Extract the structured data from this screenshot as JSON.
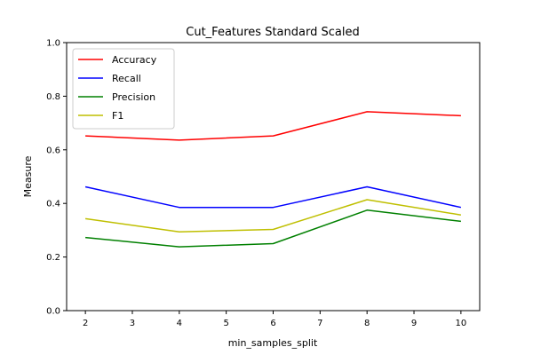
{
  "chart_data": {
    "type": "line",
    "title": "Cut_Features Standard Scaled",
    "xlabel": "min_samples_split",
    "ylabel": "Measure",
    "x": [
      2,
      4,
      6,
      8,
      10
    ],
    "xlim": [
      1.6,
      10.4
    ],
    "ylim": [
      0.0,
      1.0
    ],
    "xticks": [
      "2",
      "3",
      "4",
      "5",
      "6",
      "7",
      "8",
      "9",
      "10"
    ],
    "yticks": [
      "0.0",
      "0.2",
      "0.4",
      "0.6",
      "0.8",
      "1.0"
    ],
    "grid": false,
    "legend": "top-left",
    "series": [
      {
        "name": "Accuracy",
        "color": "#ff0000",
        "values": [
          0.652,
          0.636,
          0.652,
          0.742,
          0.727
        ]
      },
      {
        "name": "Recall",
        "color": "#0000ff",
        "values": [
          0.462,
          0.385,
          0.385,
          0.462,
          0.385
        ]
      },
      {
        "name": "Precision",
        "color": "#008000",
        "values": [
          0.273,
          0.238,
          0.25,
          0.375,
          0.333
        ]
      },
      {
        "name": "F1",
        "color": "#bfbf00",
        "values": [
          0.343,
          0.294,
          0.303,
          0.414,
          0.357
        ]
      }
    ]
  }
}
